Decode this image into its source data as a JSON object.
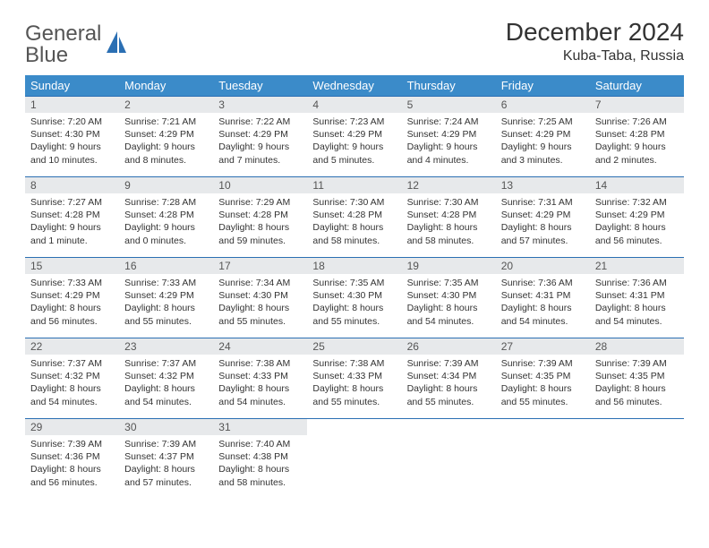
{
  "brand": {
    "name1": "General",
    "name2": "Blue"
  },
  "title": "December 2024",
  "location": "Kuba-Taba, Russia",
  "colors": {
    "header_bg": "#3b8bc9",
    "header_text": "#ffffff",
    "daynum_bg": "#e7e9eb",
    "rule": "#2b6fb3",
    "brand_gray": "#555555",
    "brand_blue": "#2b6fb3",
    "body_text": "#333333",
    "page_bg": "#ffffff"
  },
  "weekdays": [
    "Sunday",
    "Monday",
    "Tuesday",
    "Wednesday",
    "Thursday",
    "Friday",
    "Saturday"
  ],
  "weeks": [
    [
      {
        "n": "1",
        "sunrise": "7:20 AM",
        "sunset": "4:30 PM",
        "day": "9 hours and 10 minutes."
      },
      {
        "n": "2",
        "sunrise": "7:21 AM",
        "sunset": "4:29 PM",
        "day": "9 hours and 8 minutes."
      },
      {
        "n": "3",
        "sunrise": "7:22 AM",
        "sunset": "4:29 PM",
        "day": "9 hours and 7 minutes."
      },
      {
        "n": "4",
        "sunrise": "7:23 AM",
        "sunset": "4:29 PM",
        "day": "9 hours and 5 minutes."
      },
      {
        "n": "5",
        "sunrise": "7:24 AM",
        "sunset": "4:29 PM",
        "day": "9 hours and 4 minutes."
      },
      {
        "n": "6",
        "sunrise": "7:25 AM",
        "sunset": "4:29 PM",
        "day": "9 hours and 3 minutes."
      },
      {
        "n": "7",
        "sunrise": "7:26 AM",
        "sunset": "4:28 PM",
        "day": "9 hours and 2 minutes."
      }
    ],
    [
      {
        "n": "8",
        "sunrise": "7:27 AM",
        "sunset": "4:28 PM",
        "day": "9 hours and 1 minute."
      },
      {
        "n": "9",
        "sunrise": "7:28 AM",
        "sunset": "4:28 PM",
        "day": "9 hours and 0 minutes."
      },
      {
        "n": "10",
        "sunrise": "7:29 AM",
        "sunset": "4:28 PM",
        "day": "8 hours and 59 minutes."
      },
      {
        "n": "11",
        "sunrise": "7:30 AM",
        "sunset": "4:28 PM",
        "day": "8 hours and 58 minutes."
      },
      {
        "n": "12",
        "sunrise": "7:30 AM",
        "sunset": "4:28 PM",
        "day": "8 hours and 58 minutes."
      },
      {
        "n": "13",
        "sunrise": "7:31 AM",
        "sunset": "4:29 PM",
        "day": "8 hours and 57 minutes."
      },
      {
        "n": "14",
        "sunrise": "7:32 AM",
        "sunset": "4:29 PM",
        "day": "8 hours and 56 minutes."
      }
    ],
    [
      {
        "n": "15",
        "sunrise": "7:33 AM",
        "sunset": "4:29 PM",
        "day": "8 hours and 56 minutes."
      },
      {
        "n": "16",
        "sunrise": "7:33 AM",
        "sunset": "4:29 PM",
        "day": "8 hours and 55 minutes."
      },
      {
        "n": "17",
        "sunrise": "7:34 AM",
        "sunset": "4:30 PM",
        "day": "8 hours and 55 minutes."
      },
      {
        "n": "18",
        "sunrise": "7:35 AM",
        "sunset": "4:30 PM",
        "day": "8 hours and 55 minutes."
      },
      {
        "n": "19",
        "sunrise": "7:35 AM",
        "sunset": "4:30 PM",
        "day": "8 hours and 54 minutes."
      },
      {
        "n": "20",
        "sunrise": "7:36 AM",
        "sunset": "4:31 PM",
        "day": "8 hours and 54 minutes."
      },
      {
        "n": "21",
        "sunrise": "7:36 AM",
        "sunset": "4:31 PM",
        "day": "8 hours and 54 minutes."
      }
    ],
    [
      {
        "n": "22",
        "sunrise": "7:37 AM",
        "sunset": "4:32 PM",
        "day": "8 hours and 54 minutes."
      },
      {
        "n": "23",
        "sunrise": "7:37 AM",
        "sunset": "4:32 PM",
        "day": "8 hours and 54 minutes."
      },
      {
        "n": "24",
        "sunrise": "7:38 AM",
        "sunset": "4:33 PM",
        "day": "8 hours and 54 minutes."
      },
      {
        "n": "25",
        "sunrise": "7:38 AM",
        "sunset": "4:33 PM",
        "day": "8 hours and 55 minutes."
      },
      {
        "n": "26",
        "sunrise": "7:39 AM",
        "sunset": "4:34 PM",
        "day": "8 hours and 55 minutes."
      },
      {
        "n": "27",
        "sunrise": "7:39 AM",
        "sunset": "4:35 PM",
        "day": "8 hours and 55 minutes."
      },
      {
        "n": "28",
        "sunrise": "7:39 AM",
        "sunset": "4:35 PM",
        "day": "8 hours and 56 minutes."
      }
    ],
    [
      {
        "n": "29",
        "sunrise": "7:39 AM",
        "sunset": "4:36 PM",
        "day": "8 hours and 56 minutes."
      },
      {
        "n": "30",
        "sunrise": "7:39 AM",
        "sunset": "4:37 PM",
        "day": "8 hours and 57 minutes."
      },
      {
        "n": "31",
        "sunrise": "7:40 AM",
        "sunset": "4:38 PM",
        "day": "8 hours and 58 minutes."
      },
      null,
      null,
      null,
      null
    ]
  ],
  "labels": {
    "sunrise": "Sunrise: ",
    "sunset": "Sunset: ",
    "daylight": "Daylight: "
  }
}
